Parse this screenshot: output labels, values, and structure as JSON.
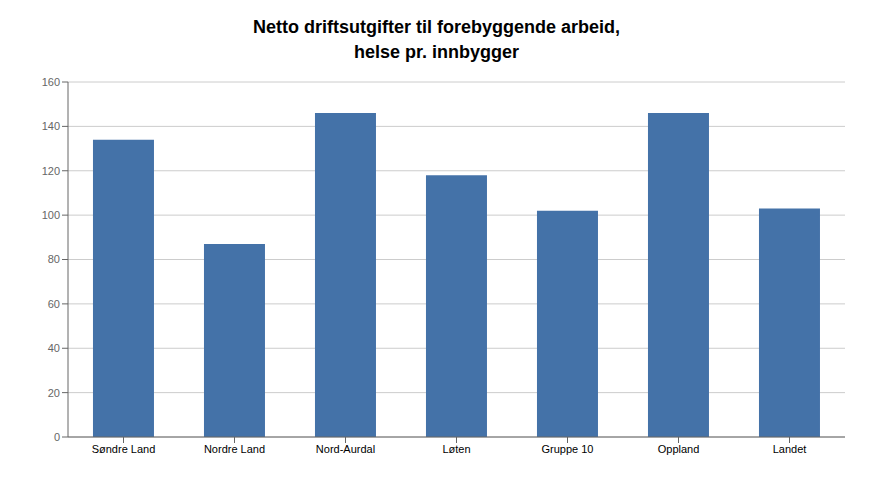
{
  "chart_data": {
    "type": "bar",
    "title": "Netto driftsutgifter til forebyggende arbeid,\nhelse pr. innbygger",
    "categories": [
      "Søndre Land",
      "Nordre Land",
      "Nord-Aurdal",
      "Løten",
      "Gruppe 10",
      "Oppland",
      "Landet"
    ],
    "values": [
      134,
      87,
      146,
      118,
      102,
      146,
      103
    ],
    "color": "#4472a8",
    "ylim": [
      0,
      160
    ],
    "yticks": [
      0,
      20,
      40,
      60,
      80,
      100,
      120,
      140,
      160
    ],
    "grid": true
  }
}
